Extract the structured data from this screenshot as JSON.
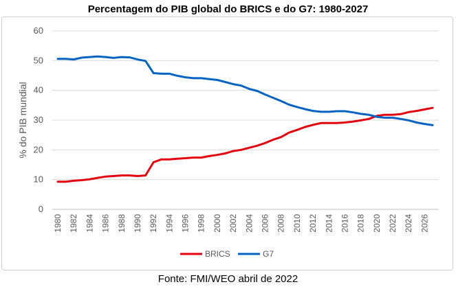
{
  "chart_data": {
    "type": "line",
    "title": "Percentagem do PIB global do BRICS e do G7: 1980-2027",
    "ylabel": "% do PIB mundial",
    "xlabel": "",
    "ylim": [
      0,
      60
    ],
    "yticks": [
      0,
      10,
      20,
      30,
      40,
      50,
      60
    ],
    "x": [
      1980,
      1981,
      1982,
      1983,
      1984,
      1985,
      1986,
      1987,
      1988,
      1989,
      1990,
      1991,
      1992,
      1993,
      1994,
      1995,
      1996,
      1997,
      1998,
      1999,
      2000,
      2001,
      2002,
      2003,
      2004,
      2005,
      2006,
      2007,
      2008,
      2009,
      2010,
      2011,
      2012,
      2013,
      2014,
      2015,
      2016,
      2017,
      2018,
      2019,
      2020,
      2021,
      2022,
      2023,
      2024,
      2025,
      2026,
      2027
    ],
    "xtick_labels": [
      "1980",
      "1982",
      "1984",
      "1986",
      "1988",
      "1990",
      "1992",
      "1994",
      "1996",
      "1998",
      "2000",
      "2002",
      "2004",
      "2006",
      "2008",
      "2010",
      "2012",
      "2014",
      "2016",
      "2018",
      "2020",
      "2022",
      "2024",
      "2026"
    ],
    "series": [
      {
        "name": "BRICS",
        "color": "#e3000f",
        "values": [
          9.3,
          9.3,
          9.6,
          9.8,
          10.1,
          10.6,
          11.0,
          11.2,
          11.4,
          11.4,
          11.2,
          11.4,
          15.8,
          16.8,
          16.8,
          17.0,
          17.2,
          17.4,
          17.4,
          17.9,
          18.3,
          18.8,
          19.6,
          20.0,
          20.7,
          21.4,
          22.3,
          23.4,
          24.3,
          25.8,
          26.7,
          27.7,
          28.4,
          29.0,
          29.0,
          29.0,
          29.2,
          29.5,
          29.9,
          30.4,
          31.4,
          31.8,
          31.8,
          32.0,
          32.7,
          33.1,
          33.6,
          34.1
        ]
      },
      {
        "name": "G7",
        "color": "#0563c1",
        "values": [
          50.6,
          50.6,
          50.4,
          51.0,
          51.2,
          51.4,
          51.2,
          50.9,
          51.2,
          51.1,
          50.4,
          49.9,
          45.8,
          45.6,
          45.6,
          44.9,
          44.4,
          44.1,
          44.1,
          43.8,
          43.5,
          42.8,
          42.1,
          41.6,
          40.5,
          39.8,
          38.6,
          37.5,
          36.4,
          35.2,
          34.4,
          33.7,
          33.1,
          32.8,
          32.8,
          33.0,
          33.0,
          32.6,
          32.1,
          31.8,
          31.1,
          30.8,
          30.8,
          30.4,
          29.9,
          29.2,
          28.7,
          28.3
        ]
      }
    ],
    "legend_position": "bottom",
    "grid": true
  },
  "source": "Fonte: FMI/WEO abril de 2022"
}
